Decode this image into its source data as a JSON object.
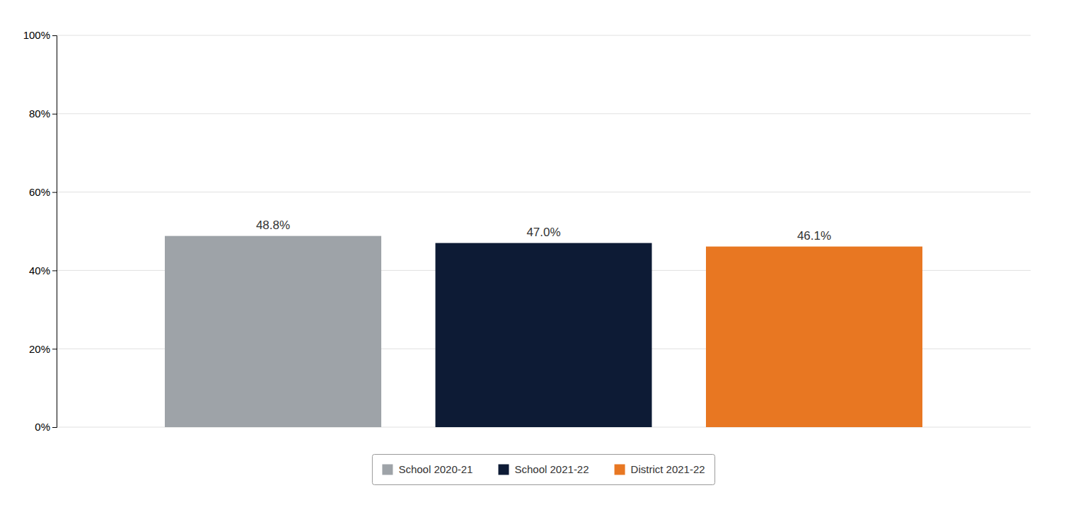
{
  "chart_data": {
    "type": "bar",
    "categories": [
      "School 2020-21",
      "School 2021-22",
      "District 2021-22"
    ],
    "values": [
      48.8,
      47.0,
      46.1
    ],
    "value_labels": [
      "48.8%",
      "47.0%",
      "46.1%"
    ],
    "colors": [
      "#9ea3a8",
      "#0d1b35",
      "#e87722"
    ],
    "ylim": [
      0,
      100
    ],
    "yticks": [
      {
        "value": 0,
        "label": "0%"
      },
      {
        "value": 20,
        "label": "20%"
      },
      {
        "value": 40,
        "label": "40%"
      },
      {
        "value": 60,
        "label": "60%"
      },
      {
        "value": 80,
        "label": "80%"
      },
      {
        "value": 100,
        "label": "100%"
      }
    ],
    "grid": true,
    "data_labels": true,
    "tick_labels": "y",
    "legend": "bottom"
  }
}
